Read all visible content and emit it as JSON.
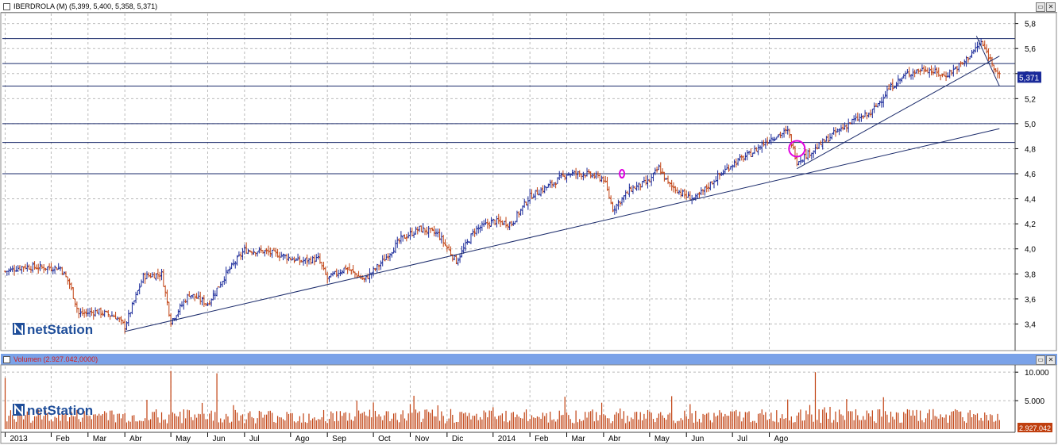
{
  "price_panel": {
    "title": "IBERDROLA (M) (5,399, 5,400, 5,358, 5,371)",
    "last_price_label": "5,371",
    "logo_text": "netStation",
    "colors": {
      "background": "#ffffff",
      "title_bar": "#ffffff",
      "bars_up": "#1a2a9a",
      "bars_down": "#c04010",
      "lines": "#1a2a6a",
      "marker": "#e000e0"
    }
  },
  "volume_panel": {
    "title": "Volumen (2.927.042,0000)",
    "last_value_label": "2.927.042",
    "logo_text": "netStation",
    "colors": {
      "title_bar": "#7aa2e8",
      "bars": "#c04010"
    }
  },
  "window_buttons": {
    "minimize": "▭",
    "close": "✕"
  },
  "chart_data": [
    {
      "type": "ohlc",
      "title": "IBERDROLA (M) (5,399, 5,400, 5,358, 5,371)",
      "y_ticks": [
        "3,4",
        "3,6",
        "3,8",
        "4,0",
        "4,2",
        "4,4",
        "4,6",
        "4,8",
        "5,0",
        "5,2",
        "5,4",
        "5,6",
        "5,8"
      ],
      "ylim": [
        3.2,
        5.88
      ],
      "x_labels": [
        "2013",
        "Feb",
        "Mar",
        "Abr",
        "May",
        "Jun",
        "Jul",
        "Ago",
        "Sep",
        "Oct",
        "Nov",
        "Dic",
        "2014",
        "Feb",
        "Mar",
        "Abr",
        "May",
        "Jun",
        "Jul",
        "Ago"
      ],
      "x_label_week_index": [
        0,
        5,
        9,
        13,
        18,
        22,
        26,
        31,
        35,
        40,
        44,
        48,
        53,
        57,
        61,
        65,
        70,
        74,
        79,
        83
      ],
      "weeks": 86,
      "close_path": [
        [
          0,
          3.82
        ],
        [
          2,
          3.86
        ],
        [
          4,
          3.85
        ],
        [
          6,
          3.85
        ],
        [
          7,
          3.72
        ],
        [
          8,
          3.48
        ],
        [
          10,
          3.5
        ],
        [
          12,
          3.46
        ],
        [
          13,
          3.38
        ],
        [
          15,
          3.78
        ],
        [
          17,
          3.8
        ],
        [
          18,
          3.42
        ],
        [
          20,
          3.64
        ],
        [
          22,
          3.56
        ],
        [
          24,
          3.8
        ],
        [
          26,
          3.99
        ],
        [
          28,
          3.98
        ],
        [
          30,
          3.95
        ],
        [
          32,
          3.9
        ],
        [
          34,
          3.92
        ],
        [
          35,
          3.76
        ],
        [
          37,
          3.85
        ],
        [
          39,
          3.75
        ],
        [
          41,
          3.9
        ],
        [
          43,
          4.08
        ],
        [
          45,
          4.16
        ],
        [
          47,
          4.12
        ],
        [
          49,
          3.9
        ],
        [
          51,
          4.15
        ],
        [
          53,
          4.22
        ],
        [
          55,
          4.2
        ],
        [
          57,
          4.42
        ],
        [
          59,
          4.5
        ],
        [
          61,
          4.6
        ],
        [
          63,
          4.6
        ],
        [
          65,
          4.56
        ],
        [
          66,
          4.32
        ],
        [
          68,
          4.48
        ],
        [
          70,
          4.54
        ],
        [
          71,
          4.65
        ],
        [
          72,
          4.52
        ],
        [
          74,
          4.42
        ],
        [
          75,
          4.4
        ],
        [
          77,
          4.55
        ],
        [
          79,
          4.68
        ],
        [
          81,
          4.76
        ],
        [
          83,
          4.88
        ],
        [
          85,
          4.94
        ],
        [
          86,
          4.7
        ],
        [
          88,
          4.8
        ],
        [
          90,
          4.92
        ],
        [
          92,
          5.02
        ],
        [
          94,
          5.08
        ],
        [
          96,
          5.28
        ],
        [
          98,
          5.4
        ],
        [
          100,
          5.44
        ],
        [
          102,
          5.38
        ],
        [
          104,
          5.48
        ],
        [
          106,
          5.65
        ],
        [
          108,
          5.38
        ]
      ],
      "horizontal_levels": [
        5.68,
        5.48,
        5.3,
        5.0,
        4.85,
        4.6
      ],
      "trendlines": [
        {
          "from": [
            13,
            3.34
          ],
          "to": [
            108,
            4.96
          ]
        },
        {
          "from": [
            86,
            4.64
          ],
          "to": [
            108,
            5.54
          ]
        },
        {
          "from": [
            105.5,
            5.7
          ],
          "to": [
            108,
            5.3
          ]
        }
      ],
      "markers": [
        {
          "week": 67,
          "value": 4.6,
          "shape": "small-ellipse"
        },
        {
          "week": 86,
          "value": 4.8,
          "shape": "circle"
        }
      ],
      "last_value": 5.371
    },
    {
      "type": "bar",
      "title": "Volumen (2.927.042,0000)",
      "y_ticks": [
        "10.000",
        "5.000"
      ],
      "ylim": [
        0,
        11000
      ],
      "unit_note": "thousands",
      "spikes": [
        {
          "week": 0,
          "value": 9000
        },
        {
          "week": 18,
          "value": 10200
        },
        {
          "week": 23,
          "value": 9800
        },
        {
          "week": 44,
          "value": 4400
        },
        {
          "week": 85,
          "value": 5200
        },
        {
          "week": 88,
          "value": 10000
        }
      ],
      "typical_range": [
        1000,
        3500
      ],
      "last_value": 2927
    }
  ]
}
